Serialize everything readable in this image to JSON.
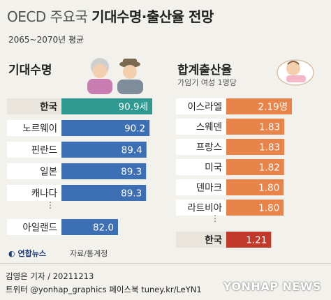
{
  "header": {
    "title_prefix": "OECD 주요국",
    "title_main": "기대수명·출산율 전망",
    "subtitle": "2065~2070년 평균"
  },
  "left_section": {
    "title": "기대수명"
  },
  "right_section": {
    "title": "합계출산율",
    "subtitle": "가임기 여성 1명당"
  },
  "footer": {
    "source": "자료/통계청",
    "logo": "연합뉴스",
    "credit_line1": "김영은 기자 / 20211213",
    "credit_line2": "트위터 @yonhap_graphics  페이스북 tuney.kr/LeYN1",
    "watermark": "YONHAP NEWS"
  },
  "colors": {
    "life_highlight": "#2f9a92",
    "life_bar": "#3d6fb4",
    "fert_bar": "#e8834a",
    "fert_highlight": "#c0392b",
    "label_bg": "#ffffff"
  },
  "chart_data": [
    {
      "type": "bar",
      "title": "기대수명",
      "categories": [
        "한국",
        "노르웨이",
        "핀란드",
        "일본",
        "캐나다",
        "아일랜드"
      ],
      "values": [
        90.9,
        90.2,
        89.4,
        89.3,
        89.3,
        82.0
      ],
      "value_labels": [
        "90.9세",
        "90.2",
        "89.4",
        "89.3",
        "89.3",
        "82.0"
      ],
      "gap_after_index": 4,
      "highlight": "한국"
    },
    {
      "type": "bar",
      "title": "합계출산율",
      "subtitle": "가임기 여성 1명당",
      "categories": [
        "이스라엘",
        "스웨덴",
        "프랑스",
        "미국",
        "덴마크",
        "라트비아",
        "한국"
      ],
      "values": [
        2.19,
        1.83,
        1.83,
        1.82,
        1.8,
        1.8,
        1.21
      ],
      "value_labels": [
        "2.19명",
        "1.83",
        "1.83",
        "1.82",
        "1.80",
        "1.80",
        "1.21"
      ],
      "gap_after_index": 5,
      "highlight": "한국"
    }
  ]
}
